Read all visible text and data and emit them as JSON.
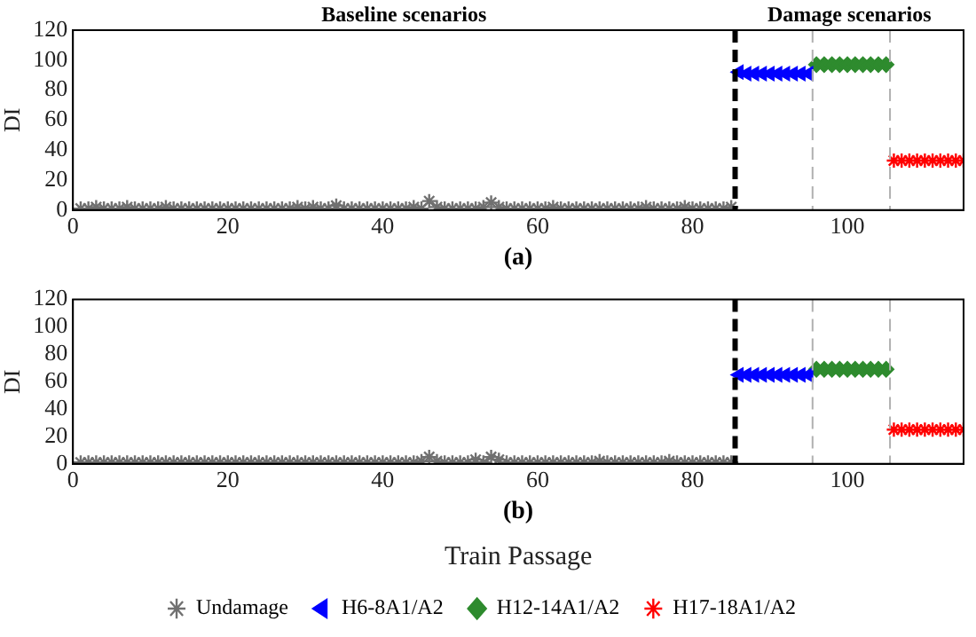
{
  "chart_data": [
    {
      "type": "scatter",
      "title": "(a)",
      "ylabel": "DI",
      "annotations": [
        "Baseline scenarios",
        "Damage scenarios"
      ],
      "xlim": [
        0,
        115
      ],
      "xticks": [
        0,
        20,
        40,
        60,
        80,
        100
      ],
      "ylim": [
        0,
        120
      ],
      "yticks": [
        0,
        20,
        40,
        60,
        80,
        100,
        120
      ],
      "grid": false,
      "legend": false,
      "ref_lines": [
        {
          "axis": "x",
          "value": 85.5,
          "color": "#000000",
          "line_style": "dashed"
        },
        {
          "axis": "x",
          "value": 95.5,
          "color": "#b0b0b0",
          "line_style": "dashed"
        },
        {
          "axis": "x",
          "value": 105.5,
          "color": "#b0b0b0",
          "line_style": "dashed"
        }
      ],
      "series": [
        {
          "color": "#707070",
          "marker": "cross",
          "x": [
            1,
            2,
            3,
            4,
            5,
            6,
            7,
            8,
            9,
            10,
            11,
            12,
            13,
            14,
            15,
            16,
            17,
            18,
            19,
            20,
            21,
            22,
            23,
            24,
            25,
            26,
            27,
            28,
            29,
            30,
            31,
            32,
            33,
            34,
            35,
            36,
            37,
            38,
            39,
            40,
            41,
            42,
            43,
            44,
            45,
            46,
            47,
            48,
            49,
            50,
            51,
            52,
            53,
            54,
            55,
            56,
            57,
            58,
            59,
            60,
            61,
            62,
            63,
            64,
            65,
            66,
            67,
            68,
            69,
            70,
            71,
            72,
            73,
            74,
            75,
            76,
            77,
            78,
            79,
            80,
            81,
            82,
            83,
            84,
            85
          ],
          "values": [
            1,
            1,
            2,
            1,
            1,
            1,
            2,
            1,
            1,
            1,
            1,
            2,
            1,
            1,
            1,
            1,
            1,
            1,
            1,
            1,
            1,
            1,
            1,
            1,
            1,
            1,
            1,
            1,
            2,
            1,
            2,
            1,
            1,
            3,
            1,
            1,
            1,
            1,
            1,
            1,
            1,
            1,
            1,
            2,
            1,
            6,
            2,
            1,
            1,
            1,
            1,
            1,
            2,
            5,
            2,
            1,
            1,
            1,
            1,
            1,
            1,
            2,
            1,
            1,
            1,
            1,
            1,
            1,
            1,
            1,
            1,
            1,
            1,
            2,
            1,
            1,
            1,
            1,
            2,
            1,
            1,
            1,
            1,
            1,
            2
          ]
        },
        {
          "color": "#0000ff",
          "marker": "triangle",
          "x": [
            86,
            87,
            88,
            89,
            90,
            91,
            92,
            93,
            94,
            95
          ],
          "values": [
            92,
            91,
            91,
            91,
            91,
            91,
            91,
            91,
            91,
            91
          ]
        },
        {
          "color": "#2e8b2e",
          "marker": "diamond",
          "x": [
            96,
            97,
            98,
            99,
            100,
            101,
            102,
            103,
            104,
            105
          ],
          "values": [
            97,
            97,
            97,
            97,
            97,
            97,
            97,
            97,
            97,
            97
          ]
        },
        {
          "color": "#ff0000",
          "marker": "cross",
          "x": [
            106,
            107,
            108,
            109,
            110,
            111,
            112,
            113,
            114,
            115
          ],
          "values": [
            33,
            33,
            33,
            33,
            33,
            33,
            33,
            33,
            33,
            33
          ]
        }
      ]
    },
    {
      "type": "scatter",
      "title": "(b)",
      "xlabel": "Train Passage",
      "ylabel": "DI",
      "xlim": [
        0,
        115
      ],
      "xticks": [
        0,
        20,
        40,
        60,
        80,
        100
      ],
      "ylim": [
        0,
        120
      ],
      "yticks": [
        0,
        20,
        40,
        60,
        80,
        100,
        120
      ],
      "grid": false,
      "legend": "bottom",
      "ref_lines": [
        {
          "axis": "x",
          "value": 85.5,
          "color": "#000000",
          "line_style": "dashed"
        },
        {
          "axis": "x",
          "value": 95.5,
          "color": "#b0b0b0",
          "line_style": "dashed"
        },
        {
          "axis": "x",
          "value": 105.5,
          "color": "#b0b0b0",
          "line_style": "dashed"
        }
      ],
      "series": [
        {
          "name": "Undamage",
          "color": "#707070",
          "marker": "cross",
          "x": [
            1,
            2,
            3,
            4,
            5,
            6,
            7,
            8,
            9,
            10,
            11,
            12,
            13,
            14,
            15,
            16,
            17,
            18,
            19,
            20,
            21,
            22,
            23,
            24,
            25,
            26,
            27,
            28,
            29,
            30,
            31,
            32,
            33,
            34,
            35,
            36,
            37,
            38,
            39,
            40,
            41,
            42,
            43,
            44,
            45,
            46,
            47,
            48,
            49,
            50,
            51,
            52,
            53,
            54,
            55,
            56,
            57,
            58,
            59,
            60,
            61,
            62,
            63,
            64,
            65,
            66,
            67,
            68,
            69,
            70,
            71,
            72,
            73,
            74,
            75,
            76,
            77,
            78,
            79,
            80,
            81,
            82,
            83,
            84,
            85
          ],
          "values": [
            1,
            1,
            1,
            1,
            1,
            1,
            1,
            1,
            1,
            1,
            1,
            1,
            1,
            1,
            1,
            1,
            1,
            1,
            1,
            1,
            1,
            1,
            1,
            1,
            1,
            1,
            1,
            1,
            1,
            1,
            1,
            1,
            1,
            1,
            1,
            1,
            1,
            1,
            1,
            1,
            1,
            1,
            1,
            1,
            2,
            5,
            2,
            1,
            1,
            1,
            1,
            3,
            1,
            5,
            3,
            1,
            1,
            1,
            1,
            1,
            1,
            1,
            1,
            1,
            1,
            1,
            1,
            2,
            1,
            1,
            1,
            1,
            1,
            1,
            1,
            1,
            2,
            1,
            1,
            1,
            1,
            1,
            1,
            1,
            1
          ]
        },
        {
          "name": "H6-8A1/A2",
          "color": "#0000ff",
          "marker": "triangle",
          "x": [
            86,
            87,
            88,
            89,
            90,
            91,
            92,
            93,
            94,
            95
          ],
          "values": [
            65,
            65,
            65,
            65,
            65,
            65,
            65,
            65,
            65,
            65
          ]
        },
        {
          "name": "H12-14A1/A2",
          "color": "#2e8b2e",
          "marker": "diamond",
          "x": [
            96,
            97,
            98,
            99,
            100,
            101,
            102,
            103,
            104,
            105
          ],
          "values": [
            69,
            69,
            69,
            69,
            69,
            69,
            69,
            69,
            69,
            69
          ]
        },
        {
          "name": "H17-18A1/A2",
          "color": "#ff0000",
          "marker": "cross",
          "x": [
            106,
            107,
            108,
            109,
            110,
            111,
            112,
            113,
            114,
            115
          ],
          "values": [
            25,
            25,
            25,
            25,
            25,
            25,
            25,
            25,
            25,
            25
          ]
        }
      ]
    }
  ]
}
